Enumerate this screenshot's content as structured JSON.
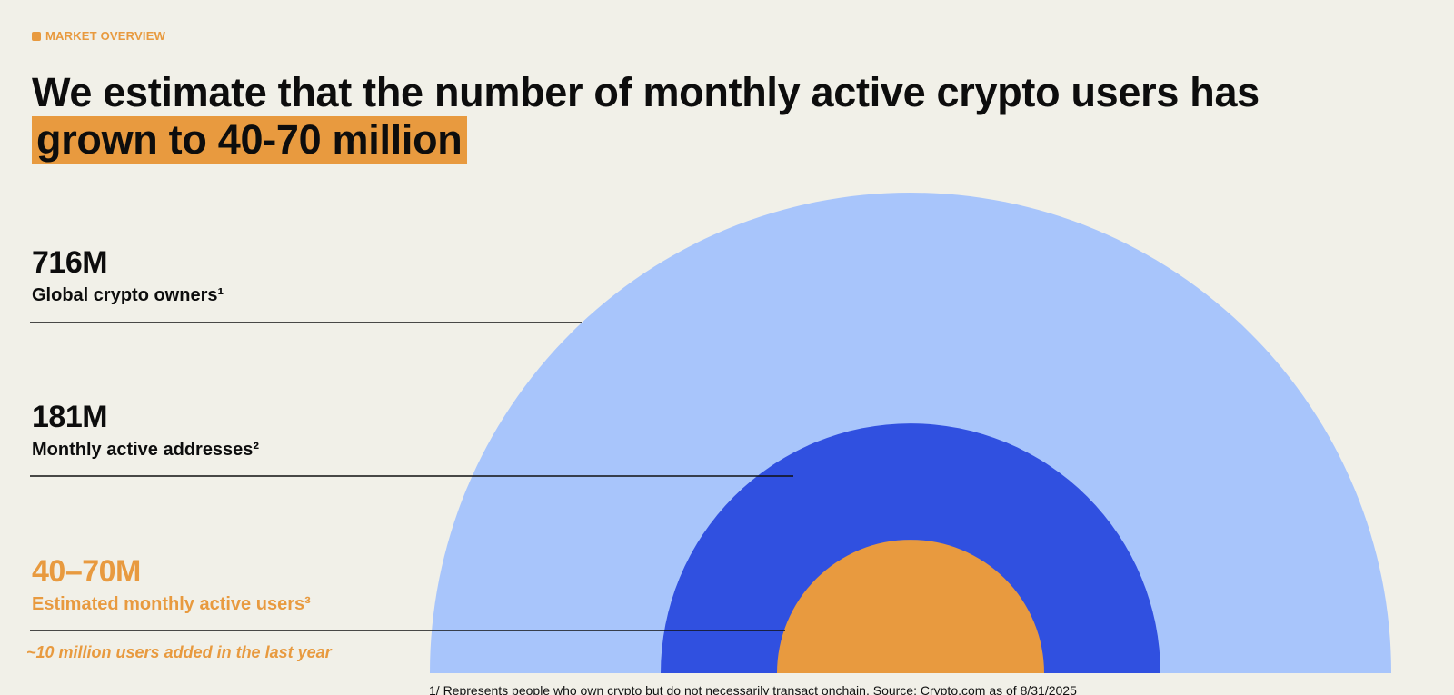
{
  "header": {
    "eyebrow": "MARKET OVERVIEW",
    "headline_plain": "We estimate that the number of monthly active crypto users has ",
    "headline_highlight": "grown to 40-70 million"
  },
  "stats": [
    {
      "value": "716M",
      "label": "Global crypto owners¹"
    },
    {
      "value": "181M",
      "label": "Monthly active addresses²"
    },
    {
      "value": "40–70M",
      "label": "Estimated monthly active users³"
    }
  ],
  "note": "~10 million users added in the last year",
  "footnote": "1/ Represents people who own crypto but do not necessarily transact onchain. Source: Crypto.com as of 8/31/2025",
  "colors": {
    "background": "#f1f0e8",
    "accent": "#e89a3f",
    "outer": "#a8c5fb",
    "middle": "#3050e0",
    "inner": "#e89a3f",
    "text": "#0d0d0d"
  },
  "chart_data": {
    "type": "nested-semicircles",
    "categories": [
      "Global crypto owners¹",
      "Monthly active addresses²",
      "Estimated monthly active users³"
    ],
    "values": [
      "716M",
      "181M",
      "40–70M"
    ]
  }
}
